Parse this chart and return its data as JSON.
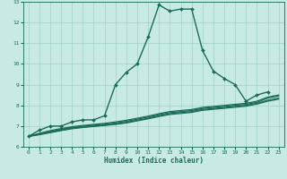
{
  "xlabel": "Humidex (Indice chaleur)",
  "xlim": [
    -0.5,
    23.5
  ],
  "ylim": [
    6,
    13
  ],
  "yticks": [
    6,
    7,
    8,
    9,
    10,
    11,
    12,
    13
  ],
  "xticks": [
    0,
    1,
    2,
    3,
    4,
    5,
    6,
    7,
    8,
    9,
    10,
    11,
    12,
    13,
    14,
    15,
    16,
    17,
    18,
    19,
    20,
    21,
    22,
    23
  ],
  "bg_color": "#c8eae4",
  "grid_color": "#a0cfc8",
  "line_color": "#1a6b5a",
  "lines": [
    {
      "x": [
        0,
        1,
        2,
        3,
        4,
        5,
        6,
        7,
        8,
        9,
        10,
        11,
        12,
        13,
        14,
        15,
        16,
        17,
        18,
        19,
        20,
        21,
        22
      ],
      "y": [
        6.5,
        6.8,
        7.0,
        7.0,
        7.2,
        7.3,
        7.3,
        7.5,
        9.0,
        9.6,
        10.0,
        11.3,
        12.85,
        12.55,
        12.65,
        12.65,
        10.65,
        9.65,
        9.3,
        9.0,
        8.2,
        8.5,
        8.65
      ],
      "marker": "D",
      "markersize": 2.0,
      "linewidth": 1.0,
      "linestyle": "-"
    },
    {
      "x": [
        0,
        1,
        2,
        3,
        4,
        5,
        6,
        7,
        8,
        9,
        10,
        11,
        12,
        13,
        14,
        15,
        16,
        17,
        18,
        19,
        20,
        21,
        22,
        23
      ],
      "y": [
        6.5,
        6.65,
        6.78,
        6.88,
        6.97,
        7.03,
        7.08,
        7.13,
        7.2,
        7.28,
        7.38,
        7.48,
        7.6,
        7.7,
        7.75,
        7.8,
        7.9,
        7.95,
        8.0,
        8.05,
        8.1,
        8.2,
        8.4,
        8.5
      ],
      "marker": null,
      "markersize": 0,
      "linewidth": 0.9,
      "linestyle": "-"
    },
    {
      "x": [
        0,
        1,
        2,
        3,
        4,
        5,
        6,
        7,
        8,
        9,
        10,
        11,
        12,
        13,
        14,
        15,
        16,
        17,
        18,
        19,
        20,
        21,
        22,
        23
      ],
      "y": [
        6.5,
        6.62,
        6.74,
        6.84,
        6.93,
        6.99,
        7.04,
        7.09,
        7.15,
        7.23,
        7.33,
        7.43,
        7.55,
        7.65,
        7.7,
        7.75,
        7.85,
        7.9,
        7.95,
        8.0,
        8.05,
        8.15,
        8.35,
        8.45
      ],
      "marker": null,
      "markersize": 0,
      "linewidth": 0.9,
      "linestyle": "-"
    },
    {
      "x": [
        0,
        1,
        2,
        3,
        4,
        5,
        6,
        7,
        8,
        9,
        10,
        11,
        12,
        13,
        14,
        15,
        16,
        17,
        18,
        19,
        20,
        21,
        22,
        23
      ],
      "y": [
        6.5,
        6.6,
        6.7,
        6.8,
        6.9,
        6.95,
        7.0,
        7.05,
        7.1,
        7.18,
        7.28,
        7.38,
        7.5,
        7.6,
        7.65,
        7.7,
        7.8,
        7.85,
        7.9,
        7.95,
        8.0,
        8.1,
        8.25,
        8.35
      ],
      "marker": null,
      "markersize": 0,
      "linewidth": 0.9,
      "linestyle": "-"
    },
    {
      "x": [
        0,
        1,
        2,
        3,
        4,
        5,
        6,
        7,
        8,
        9,
        10,
        11,
        12,
        13,
        14,
        15,
        16,
        17,
        18,
        19,
        20,
        21,
        22,
        23
      ],
      "y": [
        6.5,
        6.58,
        6.68,
        6.78,
        6.87,
        6.93,
        6.98,
        7.03,
        7.08,
        7.15,
        7.25,
        7.35,
        7.46,
        7.56,
        7.61,
        7.66,
        7.76,
        7.81,
        7.86,
        7.91,
        7.96,
        8.06,
        8.2,
        8.3
      ],
      "marker": null,
      "markersize": 0,
      "linewidth": 0.9,
      "linestyle": "-"
    }
  ]
}
